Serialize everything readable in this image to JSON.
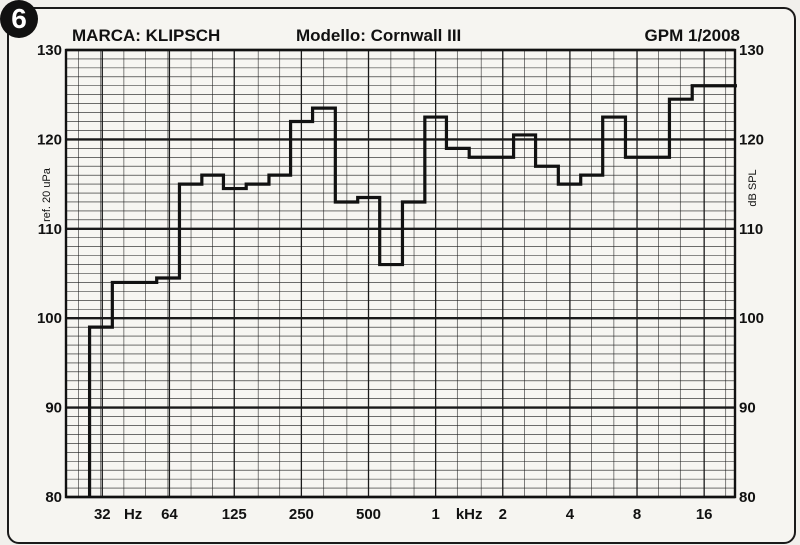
{
  "figure_number": "6",
  "header": {
    "brand": "MARCA: KLIPSCH",
    "model": "Modello: Cornwall III",
    "source": "GPM  1/2008"
  },
  "colors": {
    "line": "#111111",
    "paper": "#f6f5f1",
    "grid": "#1a1a1a"
  },
  "chart_data": {
    "type": "line",
    "step": true,
    "xscale": "log2",
    "grid": true,
    "xlim": [
      22,
      22000
    ],
    "ylim": [
      80,
      130
    ],
    "ylabel_left": "ref. 20 uPa",
    "ylabel_right": "dB SPL",
    "y_ticks": [
      80,
      90,
      100,
      110,
      120,
      130
    ],
    "x_tick_labels": [
      {
        "label": "32",
        "hz": 32
      },
      {
        "label": "Hz",
        "hz": 44
      },
      {
        "label": "64",
        "hz": 64
      },
      {
        "label": "125",
        "hz": 125
      },
      {
        "label": "250",
        "hz": 250
      },
      {
        "label": "500",
        "hz": 500
      },
      {
        "label": "1",
        "hz": 1000
      },
      {
        "label": "kHz",
        "hz": 1414
      },
      {
        "label": "2",
        "hz": 2000
      },
      {
        "label": "4",
        "hz": 4000
      },
      {
        "label": "8",
        "hz": 8000
      },
      {
        "label": "16",
        "hz": 16000
      }
    ],
    "series": [
      {
        "name": "",
        "x": [
          25,
          31.5,
          40,
          50,
          63,
          80,
          100,
          125,
          160,
          200,
          250,
          315,
          400,
          500,
          630,
          800,
          1000,
          1250,
          1600,
          2000,
          2500,
          3150,
          4000,
          5000,
          6300,
          8000,
          10000,
          12500,
          16000,
          20000
        ],
        "values": [
          null,
          99,
          104,
          104,
          104.5,
          115,
          116,
          114.5,
          115,
          116,
          122,
          123.5,
          113,
          113.5,
          106,
          113,
          122.5,
          119,
          118,
          118,
          120.5,
          117,
          115,
          116,
          122.5,
          118,
          118,
          124.5,
          126,
          126
        ]
      }
    ]
  }
}
